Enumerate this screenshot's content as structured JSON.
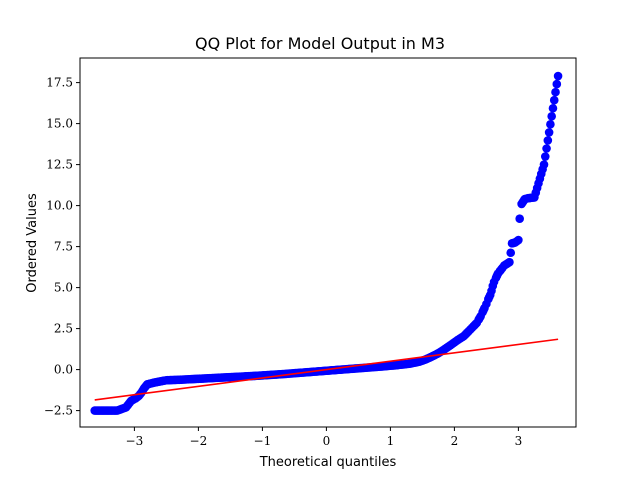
{
  "chart_data": {
    "type": "scatter",
    "title": "QQ Plot for Model Output in M3",
    "xlabel": "Theoretical quantiles",
    "ylabel": "Ordered Values",
    "xlim": [
      -3.85,
      3.9
    ],
    "ylim": [
      -3.5,
      19.0
    ],
    "x_ticks": [
      -3,
      -2,
      -1,
      0,
      1,
      2,
      3
    ],
    "x_tick_labels": [
      "−3",
      "−2",
      "−1",
      "0",
      "1",
      "2",
      "3"
    ],
    "y_ticks": [
      -2.5,
      0.0,
      2.5,
      5.0,
      7.5,
      10.0,
      12.5,
      15.0,
      17.5
    ],
    "y_tick_labels": [
      "−2.5",
      "0.0",
      "2.5",
      "5.0",
      "7.5",
      "10.0",
      "12.5",
      "15.0",
      "17.5"
    ],
    "grid": false,
    "legend": "none",
    "colors": {
      "points": "#0000ff",
      "fit_line": "#ff0000"
    },
    "series": [
      {
        "kind": "points",
        "x": [
          -3.62,
          -3.38,
          -3.27,
          -3.13,
          -3.05,
          -2.98,
          -2.93,
          -2.89,
          -2.85,
          -2.8,
          -2.7,
          -2.6,
          -2.5,
          -2.3,
          -2.1,
          -1.9,
          -1.7,
          -1.5,
          -1.3,
          -1.1,
          -0.9,
          -0.7,
          -0.5,
          -0.3,
          -0.1,
          0.1,
          0.3,
          0.5,
          0.7,
          0.9,
          1.1,
          1.3,
          1.45,
          1.55,
          1.65,
          1.75,
          1.85,
          1.95,
          2.05,
          2.15,
          2.2,
          2.25,
          2.3,
          2.35,
          2.38,
          2.41,
          2.44,
          2.47,
          2.5,
          2.53,
          2.56,
          2.58,
          2.6,
          2.62,
          2.65,
          2.68,
          2.71,
          2.75,
          2.78,
          2.82,
          2.86,
          2.9,
          2.95,
          3.0,
          3.02,
          3.05,
          3.1,
          3.15,
          3.25,
          3.4,
          3.62
        ],
        "y": [
          -2.5,
          -2.5,
          -2.5,
          -2.3,
          -1.9,
          -1.75,
          -1.6,
          -1.4,
          -1.15,
          -0.9,
          -0.8,
          -0.72,
          -0.65,
          -0.62,
          -0.58,
          -0.54,
          -0.5,
          -0.46,
          -0.42,
          -0.38,
          -0.33,
          -0.28,
          -0.22,
          -0.16,
          -0.1,
          -0.04,
          0.02,
          0.08,
          0.14,
          0.2,
          0.27,
          0.36,
          0.48,
          0.62,
          0.8,
          1.0,
          1.25,
          1.52,
          1.8,
          2.05,
          2.25,
          2.45,
          2.65,
          2.85,
          3.05,
          3.25,
          3.5,
          3.75,
          4.0,
          4.3,
          4.55,
          4.8,
          5.1,
          5.35,
          5.6,
          5.85,
          6.0,
          6.2,
          6.35,
          6.45,
          6.55,
          7.7,
          7.75,
          7.9,
          9.2,
          10.1,
          10.4,
          10.45,
          10.5,
          12.5,
          17.9
        ]
      },
      {
        "kind": "line",
        "x": [
          -3.62,
          3.62
        ],
        "y": [
          -1.85,
          1.85
        ]
      }
    ]
  }
}
